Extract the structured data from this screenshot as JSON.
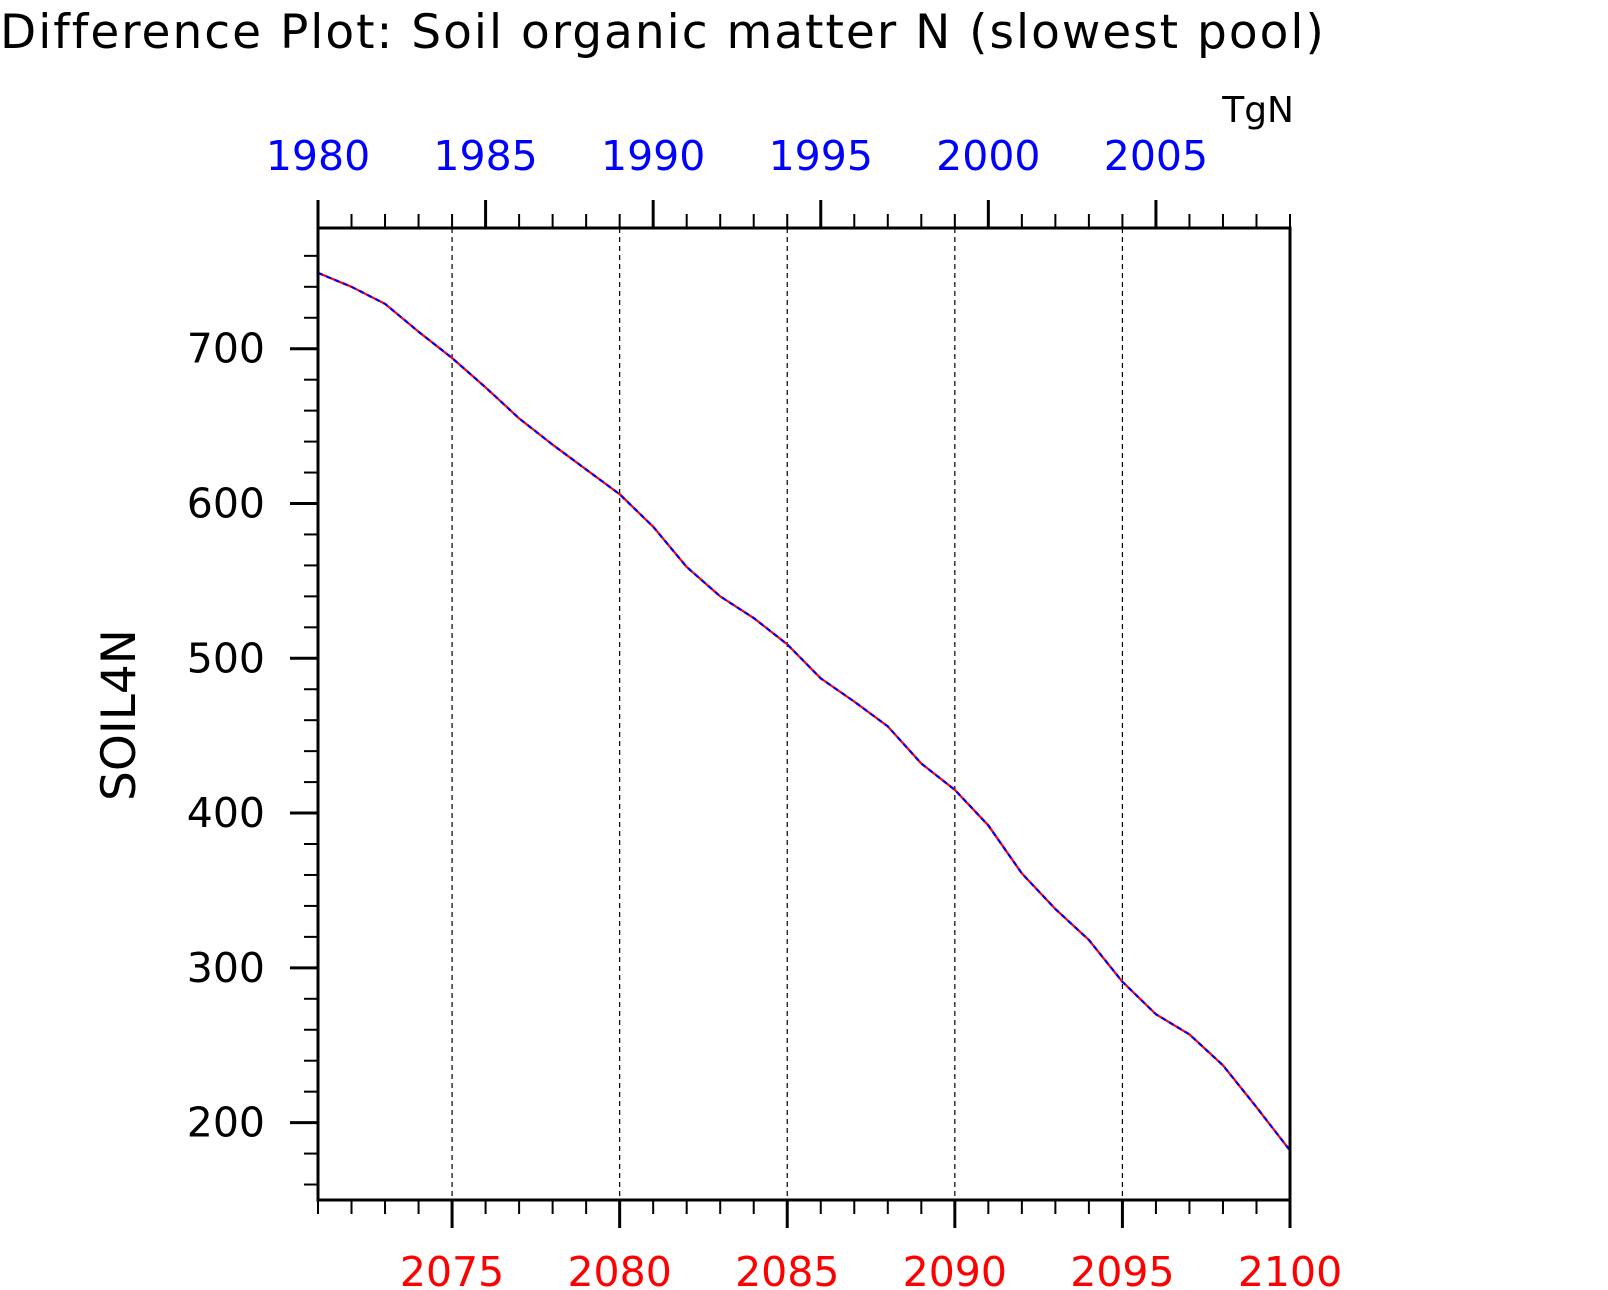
{
  "chart_data": {
    "type": "line",
    "title": "Difference Plot: Soil organic matter N (slowest pool)",
    "units": "TgN",
    "ylabel": "SOIL4N",
    "ylim": [
      150,
      778
    ],
    "yticks": [
      200,
      300,
      400,
      500,
      600,
      700
    ],
    "y_minor_step": 20,
    "grid": "vertical dashed lines at major bottom-axis ticks",
    "x_bottom": {
      "range": [
        2071,
        2100
      ],
      "ticks": [
        2075,
        2080,
        2085,
        2090,
        2095,
        2100
      ],
      "color": "#ff0000"
    },
    "x_top": {
      "range": [
        1980,
        2009
      ],
      "ticks": [
        1980,
        1985,
        1990,
        1995,
        2000,
        2005
      ],
      "color": "#0000ff"
    },
    "x": [
      2071,
      2072,
      2073,
      2074,
      2075,
      2076,
      2077,
      2078,
      2079,
      2080,
      2081,
      2082,
      2083,
      2084,
      2085,
      2086,
      2087,
      2088,
      2089,
      2090,
      2091,
      2092,
      2093,
      2094,
      2095,
      2096,
      2097,
      2098,
      2099,
      2100
    ],
    "series": [
      {
        "color": "#ff0000",
        "style": "solid",
        "axis": "bottom",
        "values": [
          749,
          740,
          729,
          711,
          694,
          675,
          655,
          638,
          622,
          606,
          585,
          559,
          540,
          526,
          509,
          487,
          472,
          456,
          432,
          415,
          392,
          361,
          338,
          318,
          291,
          270,
          257,
          237,
          210,
          182
        ]
      },
      {
        "color": "#0000ff",
        "style": "dashed",
        "axis": "top",
        "values": [
          749,
          740,
          729,
          711,
          694,
          675,
          655,
          638,
          622,
          606,
          585,
          559,
          540,
          526,
          509,
          487,
          472,
          456,
          432,
          415,
          392,
          361,
          338,
          318,
          291,
          270,
          257,
          237,
          210,
          182
        ]
      }
    ]
  }
}
